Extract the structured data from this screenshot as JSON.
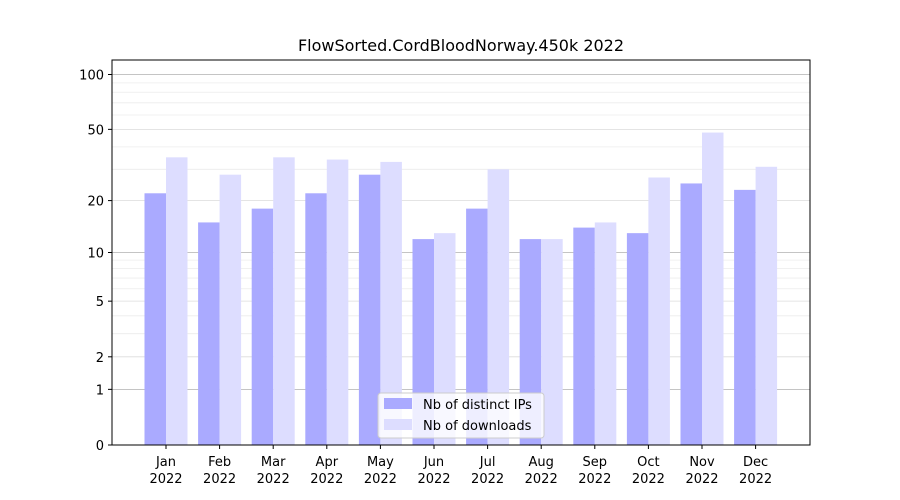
{
  "chart_data": {
    "type": "bar",
    "title": "FlowSorted.CordBloodNorway.450k 2022",
    "xlabel": "",
    "ylabel": "",
    "yscale": "symlog",
    "ylim": [
      0,
      120
    ],
    "yticks": [
      0,
      1,
      2,
      5,
      10,
      20,
      50,
      100
    ],
    "grid": true,
    "legend_position": "bottom-center",
    "categories": [
      [
        "Jan",
        "2022"
      ],
      [
        "Feb",
        "2022"
      ],
      [
        "Mar",
        "2022"
      ],
      [
        "Apr",
        "2022"
      ],
      [
        "May",
        "2022"
      ],
      [
        "Jun",
        "2022"
      ],
      [
        "Jul",
        "2022"
      ],
      [
        "Aug",
        "2022"
      ],
      [
        "Sep",
        "2022"
      ],
      [
        "Oct",
        "2022"
      ],
      [
        "Nov",
        "2022"
      ],
      [
        "Dec",
        "2022"
      ]
    ],
    "series": [
      {
        "name": "Nb of distinct IPs",
        "color": "#aaaaff",
        "values": [
          22,
          15,
          18,
          22,
          28,
          12,
          18,
          12,
          14,
          13,
          25,
          23
        ]
      },
      {
        "name": "Nb of downloads",
        "color": "#ddddff",
        "values": [
          35,
          28,
          35,
          34,
          33,
          13,
          30,
          12,
          15,
          27,
          48,
          31
        ]
      }
    ]
  }
}
